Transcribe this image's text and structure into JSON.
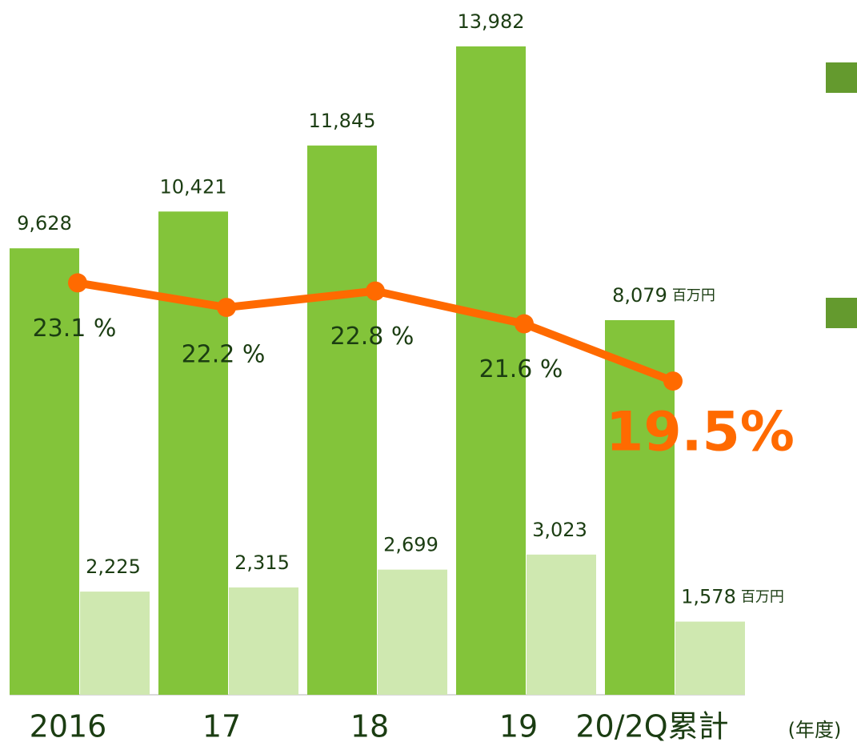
{
  "chart_data": {
    "type": "bar",
    "categories": [
      "2016",
      "17",
      "18",
      "19",
      "20/2Q累計"
    ],
    "x_label": "(年度)",
    "unit": "百万円",
    "ylim": [
      0,
      15000
    ],
    "y2lim": [
      8,
      33.5
    ],
    "series": [
      {
        "color": "#83c43a",
        "values": [
          9628,
          10421,
          11845,
          13982,
          8079
        ],
        "value_labels": [
          "9,628",
          "10,421",
          "11,845",
          "13,982",
          "8,079"
        ]
      },
      {
        "color": "#cfe8b0",
        "values": [
          2225,
          2315,
          2699,
          3023,
          1578
        ],
        "value_labels": [
          "2,225",
          "2,315",
          "2,699",
          "3,023",
          "1,578"
        ]
      },
      {
        "type": "line",
        "axis": "y2",
        "color": "#ff6a00",
        "values": [
          23.1,
          22.2,
          22.8,
          21.6,
          19.5
        ],
        "value_labels": [
          "23.1 %",
          "22.2 %",
          "22.8 %",
          "21.6 %",
          "19.5%"
        ]
      }
    ]
  }
}
